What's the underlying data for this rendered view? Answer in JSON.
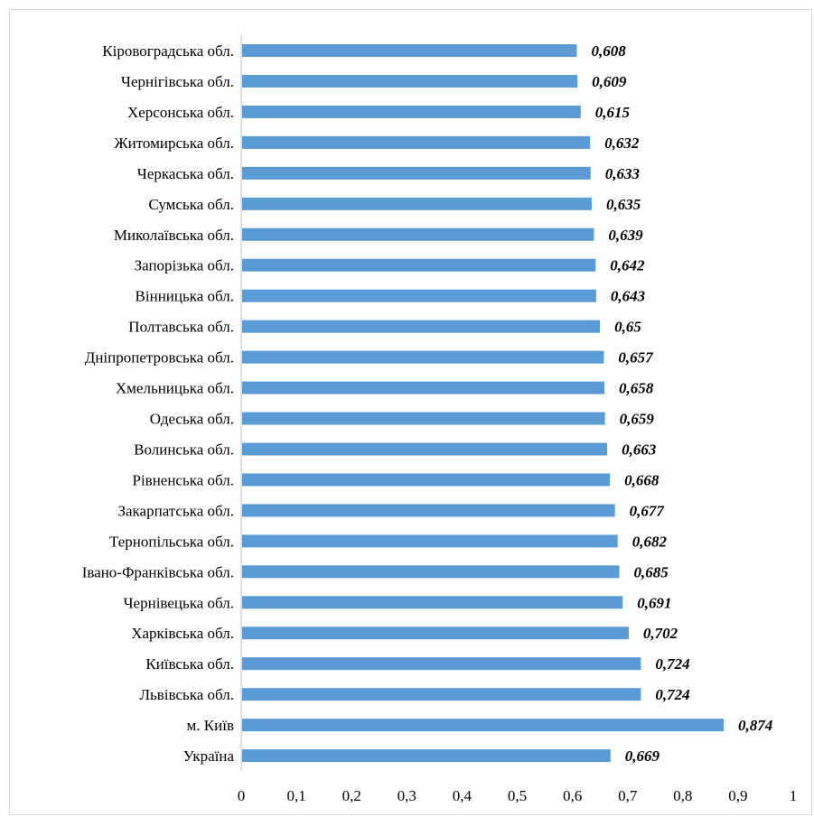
{
  "chart_data": {
    "type": "bar",
    "orientation": "horizontal",
    "categories": [
      "Кіровоградська обл.",
      "Чернігівська обл.",
      "Херсонська обл.",
      "Житомирська обл.",
      "Черкаська обл.",
      "Сумська обл.",
      "Миколаївська обл.",
      "Запорізька обл.",
      "Вінницька обл.",
      "Полтавська обл.",
      "Дніпропетровська обл.",
      "Хмельницька обл.",
      "Одеська обл.",
      "Волинська обл.",
      "Рівненська обл.",
      "Закарпатська обл.",
      "Тернопільська обл.",
      "Івано-Франківська обл.",
      "Чернівецька обл.",
      "Харківська обл.",
      "Київська обл.",
      "Львівська обл.",
      "м. Київ",
      "Україна"
    ],
    "values": [
      0.608,
      0.609,
      0.615,
      0.632,
      0.633,
      0.635,
      0.639,
      0.642,
      0.643,
      0.65,
      0.657,
      0.658,
      0.659,
      0.663,
      0.668,
      0.677,
      0.682,
      0.685,
      0.691,
      0.702,
      0.724,
      0.724,
      0.874,
      0.669
    ],
    "value_labels": [
      "0,608",
      "0,609",
      "0,615",
      "0,632",
      "0,633",
      "0,635",
      "0,639",
      "0,642",
      "0,643",
      "0,65",
      "0,657",
      "0,658",
      "0,659",
      "0,663",
      "0,668",
      "0,677",
      "0,682",
      "0,685",
      "0,691",
      "0,702",
      "0,724",
      "0,724",
      "0,874",
      "0,669"
    ],
    "xlim": [
      0,
      1
    ],
    "x_ticks": [
      0,
      0.1,
      0.2,
      0.3,
      0.4,
      0.5,
      0.6,
      0.7,
      0.8,
      0.9,
      1
    ],
    "x_tick_labels": [
      "0",
      "0,1",
      "0,2",
      "0,3",
      "0,4",
      "0,5",
      "0,6",
      "0,7",
      "0,8",
      "0,9",
      "1"
    ],
    "grid": false,
    "legend": "none",
    "title": "",
    "xlabel": "",
    "ylabel": "",
    "colors": {
      "bar": "#5b9bd5",
      "axis": "#bfbfbf"
    }
  }
}
